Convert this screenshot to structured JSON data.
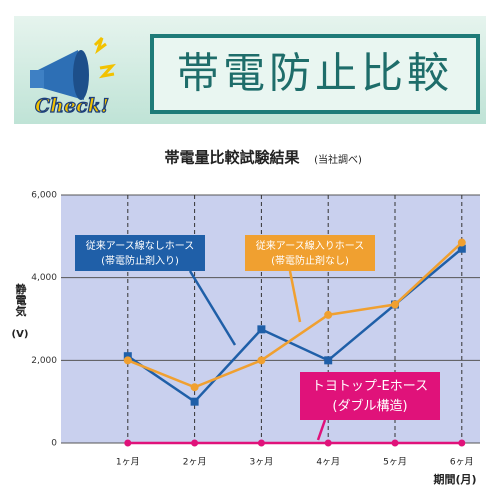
{
  "header": {
    "badge": "Check!",
    "title": "帯電防止比較"
  },
  "chart_data": {
    "type": "line",
    "title": "帯電量比較試験結果",
    "subtitle": "(当社調べ)",
    "categories": [
      "1ヶ月",
      "2ヶ月",
      "3ヶ月",
      "4ヶ月",
      "5ヶ月",
      "6ヶ月"
    ],
    "ylabel": "静電気",
    "yunit": "(V)",
    "xlabel": "期間(月)",
    "ylim": [
      0,
      6000
    ],
    "yticks": [
      0,
      {
        "value": 2000,
        "label": "2,000"
      },
      {
        "value": 4000,
        "label": "4,000"
      },
      {
        "value": 6000,
        "label": "6,000"
      }
    ],
    "grid": true,
    "series": [
      {
        "name": "従来アース線なしホース",
        "detail": "(帯電防止剤入り)",
        "color": "#1f5fa8",
        "marker": "square",
        "values": [
          2100,
          1000,
          2750,
          2000,
          3350,
          4700
        ]
      },
      {
        "name": "従来アース線入りホース",
        "detail": "(帯電防止剤なし)",
        "color": "#f0a030",
        "marker": "circle",
        "values": [
          2000,
          1350,
          2000,
          3100,
          3350,
          4850
        ]
      },
      {
        "name": "トヨトップ-Eホース",
        "detail": "(ダブル構造)",
        "color": "#e0127a",
        "marker": "circle",
        "values": [
          0,
          0,
          0,
          0,
          0,
          0
        ]
      }
    ]
  }
}
